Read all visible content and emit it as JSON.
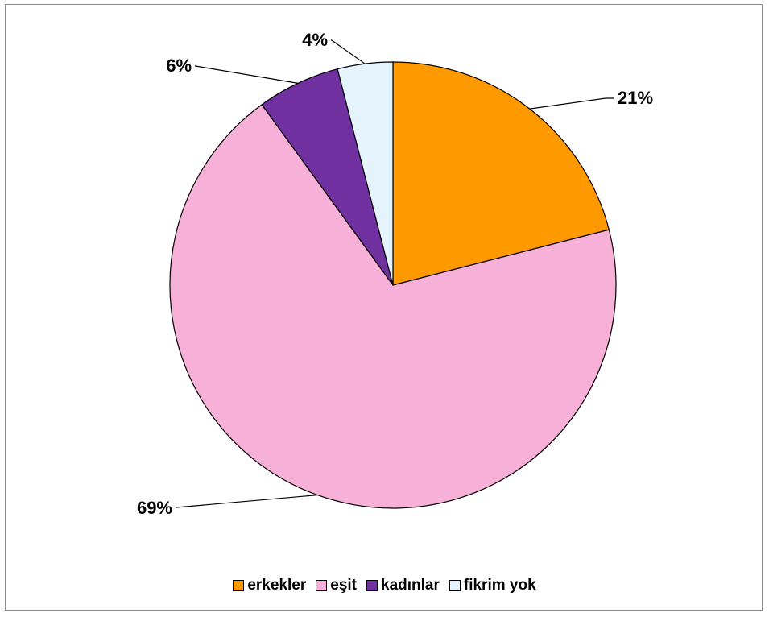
{
  "chart_data": {
    "type": "pie",
    "title": "",
    "legend_position": "bottom",
    "start_angle_deg": 0,
    "direction": "clockwise",
    "slices": [
      {
        "name": "erkekler",
        "value": 21,
        "label": "21%",
        "color": "#ff9900"
      },
      {
        "name": "eşit",
        "value": 69,
        "label": "69%",
        "color": "#f7b0d7"
      },
      {
        "name": "kadınlar",
        "value": 6,
        "label": "6%",
        "color": "#7030a0"
      },
      {
        "name": "fikrim yok",
        "value": 4,
        "label": "4%",
        "color": "#e4f3fc"
      }
    ]
  }
}
